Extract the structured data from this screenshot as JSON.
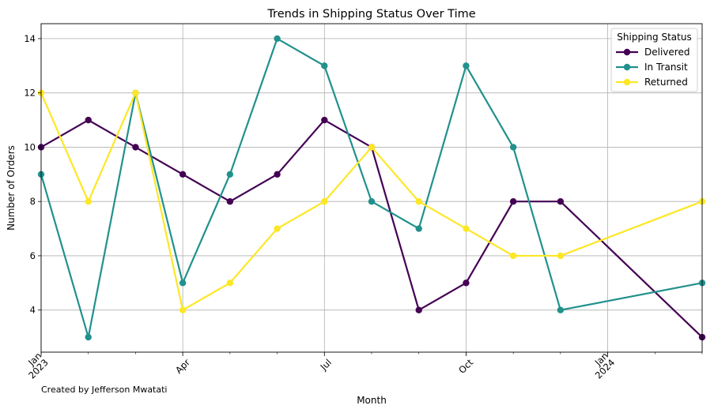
{
  "chart_data": {
    "type": "line",
    "title": "Trends in Shipping Status Over Time",
    "xlabel": "Month",
    "ylabel": "Number of Orders",
    "x": [
      "2023-01",
      "2023-02",
      "2023-03",
      "2023-04",
      "2023-05",
      "2023-06",
      "2023-07",
      "2023-08",
      "2023-09",
      "2023-10",
      "2023-11",
      "2023-12",
      "2024-03"
    ],
    "series": [
      {
        "name": "Delivered",
        "color": "#440154",
        "values": [
          10,
          11,
          10,
          9,
          8,
          9,
          11,
          10,
          4,
          5,
          8,
          8,
          3
        ]
      },
      {
        "name": "In Transit",
        "color": "#21918c",
        "values": [
          9,
          3,
          12,
          5,
          9,
          14,
          13,
          8,
          7,
          13,
          10,
          4,
          5
        ]
      },
      {
        "name": "Returned",
        "color": "#fde725",
        "values": [
          12,
          8,
          12,
          4,
          5,
          7,
          8,
          10,
          8,
          7,
          6,
          6,
          8
        ]
      }
    ],
    "x_ticks": [
      {
        "x": "2023-01",
        "label": "Jan\n2023"
      },
      {
        "x": "2023-04",
        "label": "Apr"
      },
      {
        "x": "2023-07",
        "label": "Jul"
      },
      {
        "x": "2023-10",
        "label": "Oct"
      },
      {
        "x": "2024-01",
        "label": "Jan\n2024"
      }
    ],
    "xlim": [
      "2023-01",
      "2024-03"
    ],
    "ylim": [
      2.45,
      14.55
    ],
    "y_ticks": [
      4,
      6,
      8,
      10,
      12,
      14
    ],
    "grid": true,
    "legend": {
      "title": "Shipping Status",
      "position": "top-right"
    },
    "annotation": "Created by Jefferson Mwatati"
  }
}
